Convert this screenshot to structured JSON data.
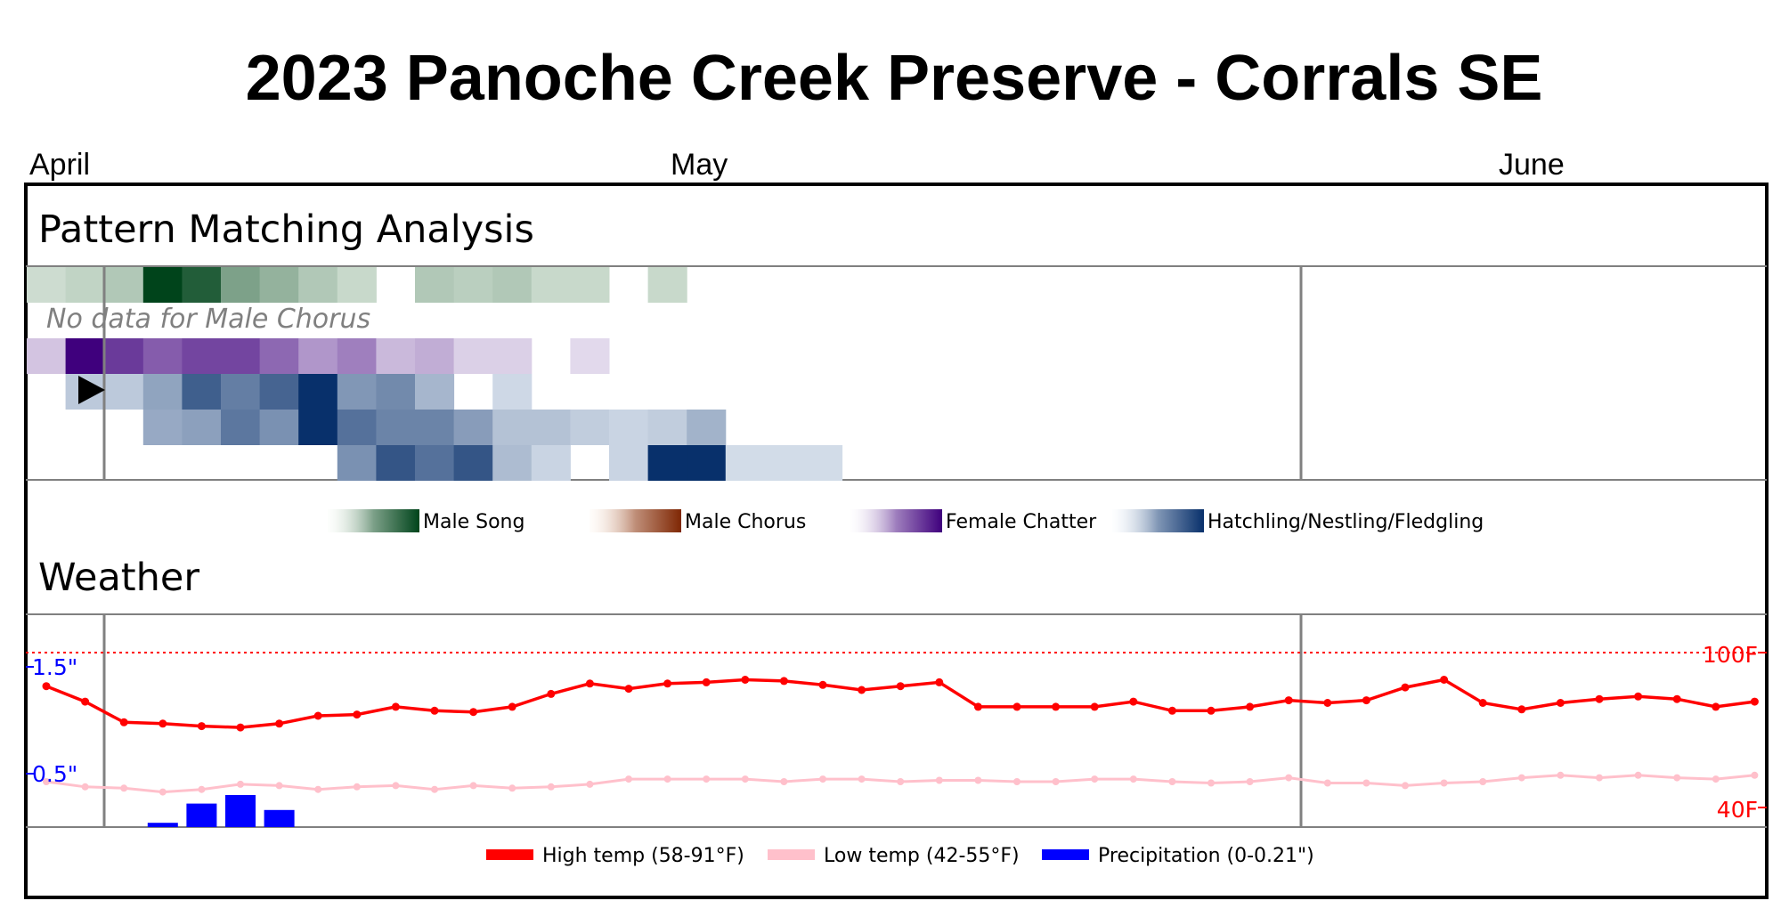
{
  "chart_data": {
    "type": "heatmap",
    "title": "2023 Panoche Creek Preserve - Corrals SE",
    "months": [
      "April",
      "May",
      "June"
    ],
    "pattern_section": {
      "title": "Pattern Matching Analysis",
      "no_data_note": "No data for Male Chorus",
      "rows": [
        {
          "name": "Male Song",
          "color_low": "#f7fcf5",
          "color_high": "#00441b",
          "values": [
            0.1,
            0.15,
            0.22,
            1.0,
            0.85,
            0.45,
            0.35,
            0.22,
            0.12,
            0,
            0.22,
            0.18,
            0.22,
            0.12,
            0.12,
            0,
            0.12
          ]
        },
        {
          "name": "Male Chorus",
          "color_low": "#fff5eb",
          "color_high": "#7f2704",
          "values": []
        },
        {
          "name": "Female Chatter",
          "color_low": "#fcfbfd",
          "color_high": "#3f007d",
          "values": [
            0.15,
            1.0,
            0.75,
            0.6,
            0.7,
            0.7,
            0.55,
            0.35,
            0.45,
            0.2,
            0.25,
            0.1,
            0.1,
            0,
            0.06
          ]
        },
        {
          "name": "Hatchling/Nestling/Fledgling 1",
          "color_low": "#f7fbff",
          "color_high": "#08306b",
          "values": [
            0,
            0.18,
            0.18,
            0.38,
            0.75,
            0.58,
            0.72,
            1.0,
            0.45,
            0.52,
            0.28,
            0,
            0.1
          ]
        },
        {
          "name": "Hatchling/Nestling/Fledgling 2",
          "color_low": "#f7fbff",
          "color_high": "#08306b",
          "values": [
            0,
            0,
            0,
            0.35,
            0.4,
            0.62,
            0.48,
            1.0,
            0.65,
            0.55,
            0.55,
            0.42,
            0.22,
            0.22,
            0.16,
            0.12,
            0.16,
            0.3
          ]
        },
        {
          "name": "Hatchling/Nestling/Fledgling 3",
          "color_low": "#f7fbff",
          "color_high": "#08306b",
          "values": [
            0,
            0,
            0,
            0,
            0,
            0,
            0,
            0,
            0.48,
            0.8,
            0.65,
            0.8,
            0.25,
            0.12,
            0,
            0.12,
            1.0,
            1.0,
            0.08,
            0.08,
            0.08
          ]
        }
      ]
    },
    "legend_top": [
      "Male Song",
      "Male Chorus",
      "Female Chatter",
      "Hatchling/Nestling/Fledgling"
    ],
    "weather_section": {
      "title": "Weather",
      "right_axis_labels": [
        "100F",
        "40F"
      ],
      "left_axis_labels": [
        "1.5\"",
        "0.5\""
      ],
      "high_temp_f": [
        87,
        81,
        73,
        72.5,
        71.5,
        71,
        72.5,
        75.5,
        76,
        79,
        77.5,
        77,
        79,
        84,
        88,
        86,
        88,
        88.5,
        89.5,
        89,
        87.5,
        85.5,
        87,
        88.5,
        79,
        79,
        79,
        79,
        81,
        77.5,
        77.5,
        79,
        81.5,
        80.5,
        81.5,
        86.5,
        89.5,
        80.5,
        78,
        80.5,
        82,
        83,
        82,
        79,
        81
      ],
      "low_temp_f": [
        50,
        48,
        47.5,
        46,
        47,
        49,
        48.5,
        47,
        48,
        48.5,
        47,
        48.5,
        47.5,
        48,
        49,
        51,
        51,
        51,
        51,
        50,
        51,
        51,
        50,
        50.5,
        50.5,
        50,
        50,
        51,
        51,
        50,
        49.5,
        50,
        51.5,
        49.5,
        49.5,
        48.5,
        49.5,
        50,
        51.5,
        52.5,
        51.5,
        52.5,
        51.5,
        51,
        52.5
      ],
      "precip_in": [
        0,
        0,
        0,
        0.02,
        0.11,
        0.15,
        0.08
      ],
      "legend": [
        {
          "label": "High temp (58-91°F)",
          "color": "#ff0000"
        },
        {
          "label": "Low temp (42-55°F)",
          "color": "#ffc0cb"
        },
        {
          "label": "Precipitation (0-0.21\")",
          "color": "#0000ff"
        }
      ]
    }
  }
}
